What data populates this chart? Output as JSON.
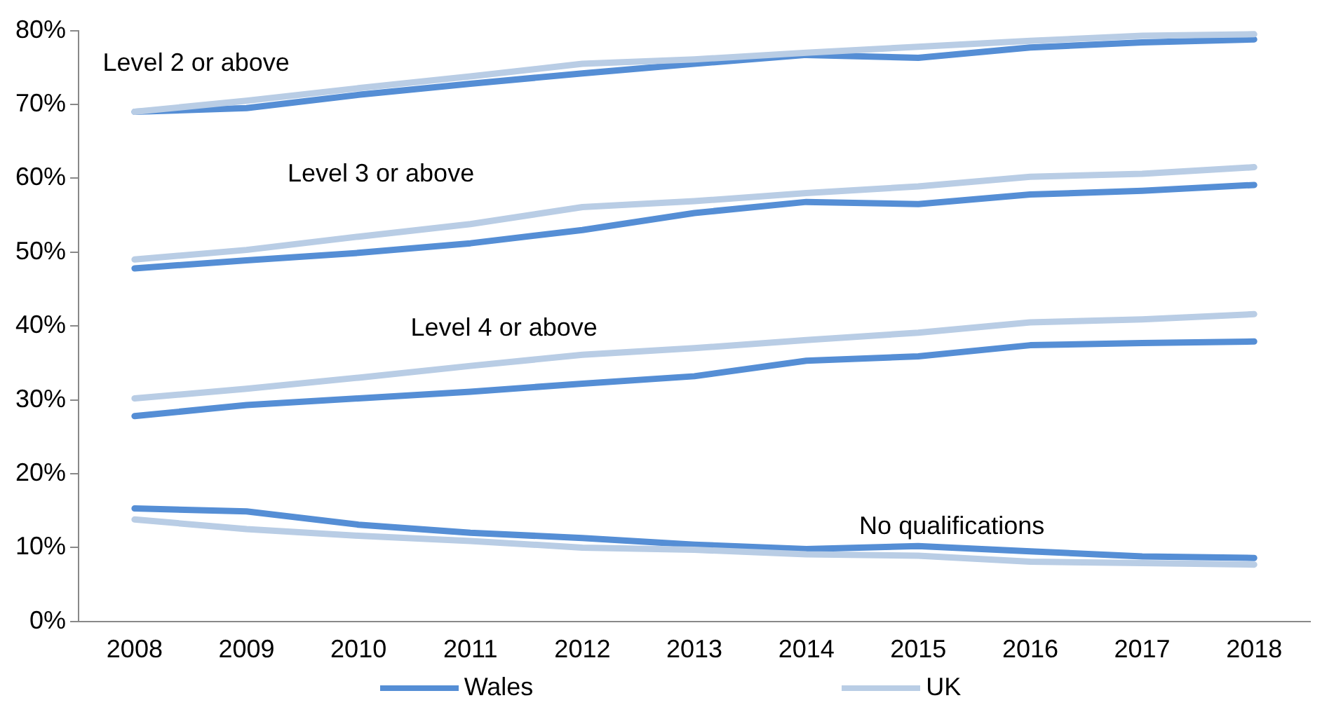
{
  "chart_data": {
    "type": "line",
    "categories": [
      "2008",
      "2009",
      "2010",
      "2011",
      "2012",
      "2013",
      "2014",
      "2015",
      "2016",
      "2017",
      "2018"
    ],
    "series": [
      {
        "color": "#b9cde5",
        "values": [
          69.0,
          70.5,
          72.2,
          73.8,
          75.5,
          76.1,
          77.0,
          77.8,
          78.6,
          79.3,
          79.5
        ]
      },
      {
        "color": "#558ed5",
        "values": [
          69.0,
          69.5,
          71.3,
          72.8,
          74.2,
          75.5,
          76.7,
          76.3,
          77.7,
          78.4,
          78.8
        ]
      },
      {
        "color": "#b9cde5",
        "values": [
          49.0,
          50.3,
          52.1,
          53.8,
          56.1,
          56.9,
          58.0,
          58.9,
          60.2,
          60.6,
          61.5
        ]
      },
      {
        "color": "#558ed5",
        "values": [
          47.8,
          48.9,
          49.9,
          51.2,
          53.0,
          55.3,
          56.8,
          56.5,
          57.8,
          58.3,
          59.1
        ]
      },
      {
        "color": "#b9cde5",
        "values": [
          30.2,
          31.5,
          33.0,
          34.6,
          36.1,
          37.0,
          38.1,
          39.1,
          40.5,
          40.9,
          41.6
        ]
      },
      {
        "color": "#558ed5",
        "values": [
          27.8,
          29.3,
          30.2,
          31.1,
          32.2,
          33.2,
          35.3,
          35.9,
          37.4,
          37.7,
          37.9
        ]
      },
      {
        "name": "UK",
        "color": "#b9cde5",
        "values": [
          13.8,
          12.5,
          11.6,
          10.9,
          10.0,
          9.7,
          9.1,
          8.9,
          8.1,
          7.9,
          7.7
        ]
      },
      {
        "name": "Wales",
        "color": "#558ed5",
        "values": [
          15.3,
          14.9,
          13.1,
          12.0,
          11.3,
          10.4,
          9.8,
          10.2,
          9.5,
          8.8,
          8.6
        ]
      }
    ],
    "ylim": [
      0,
      80
    ],
    "yticks": [
      {
        "value": 0,
        "label": "0%"
      },
      {
        "value": 10,
        "label": "10%"
      },
      {
        "value": 20,
        "label": "20%"
      },
      {
        "value": 30,
        "label": "30%"
      },
      {
        "value": 40,
        "label": "40%"
      },
      {
        "value": 50,
        "label": "50%"
      },
      {
        "value": 60,
        "label": "60%"
      },
      {
        "value": 70,
        "label": "70%"
      },
      {
        "value": 80,
        "label": "80%"
      }
    ],
    "annotations": [
      "Level 2 or above",
      "Level 3 or above",
      "Level 4 or above",
      "No qualifications"
    ],
    "grid": false,
    "legend": "bottom",
    "marker": "none",
    "line_style": "solid"
  }
}
